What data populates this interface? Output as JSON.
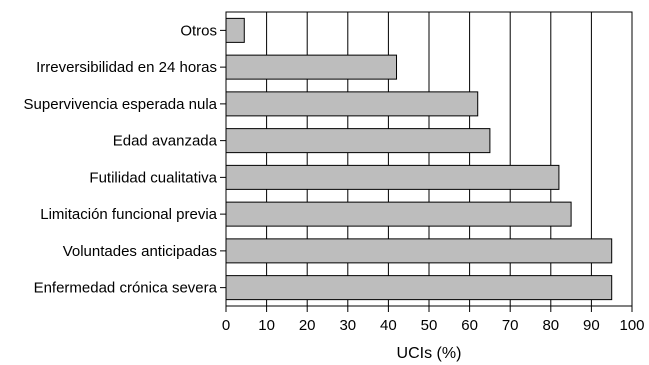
{
  "chart_data": {
    "type": "bar",
    "orientation": "horizontal",
    "categories": [
      "Otros",
      "Irreversibilidad en 24 horas",
      "Supervivencia esperada nula",
      "Edad avanzada",
      "Futilidad cualitativa",
      "Limitación funcional previa",
      "Voluntades anticipadas",
      "Enfermedad crónica severa"
    ],
    "values": [
      4.5,
      42,
      62,
      65,
      82,
      85,
      95,
      95
    ],
    "xlabel": "UCIs (%)",
    "xlim": [
      0,
      100
    ],
    "xticks": [
      "0",
      "10",
      "20",
      "30",
      "40",
      "50",
      "60",
      "70",
      "80",
      "90",
      "100"
    ],
    "grid": "vertical",
    "colors": {
      "bar_fill": "#bdbdbd",
      "bar_stroke": "#000000",
      "grid": "#000000"
    }
  }
}
